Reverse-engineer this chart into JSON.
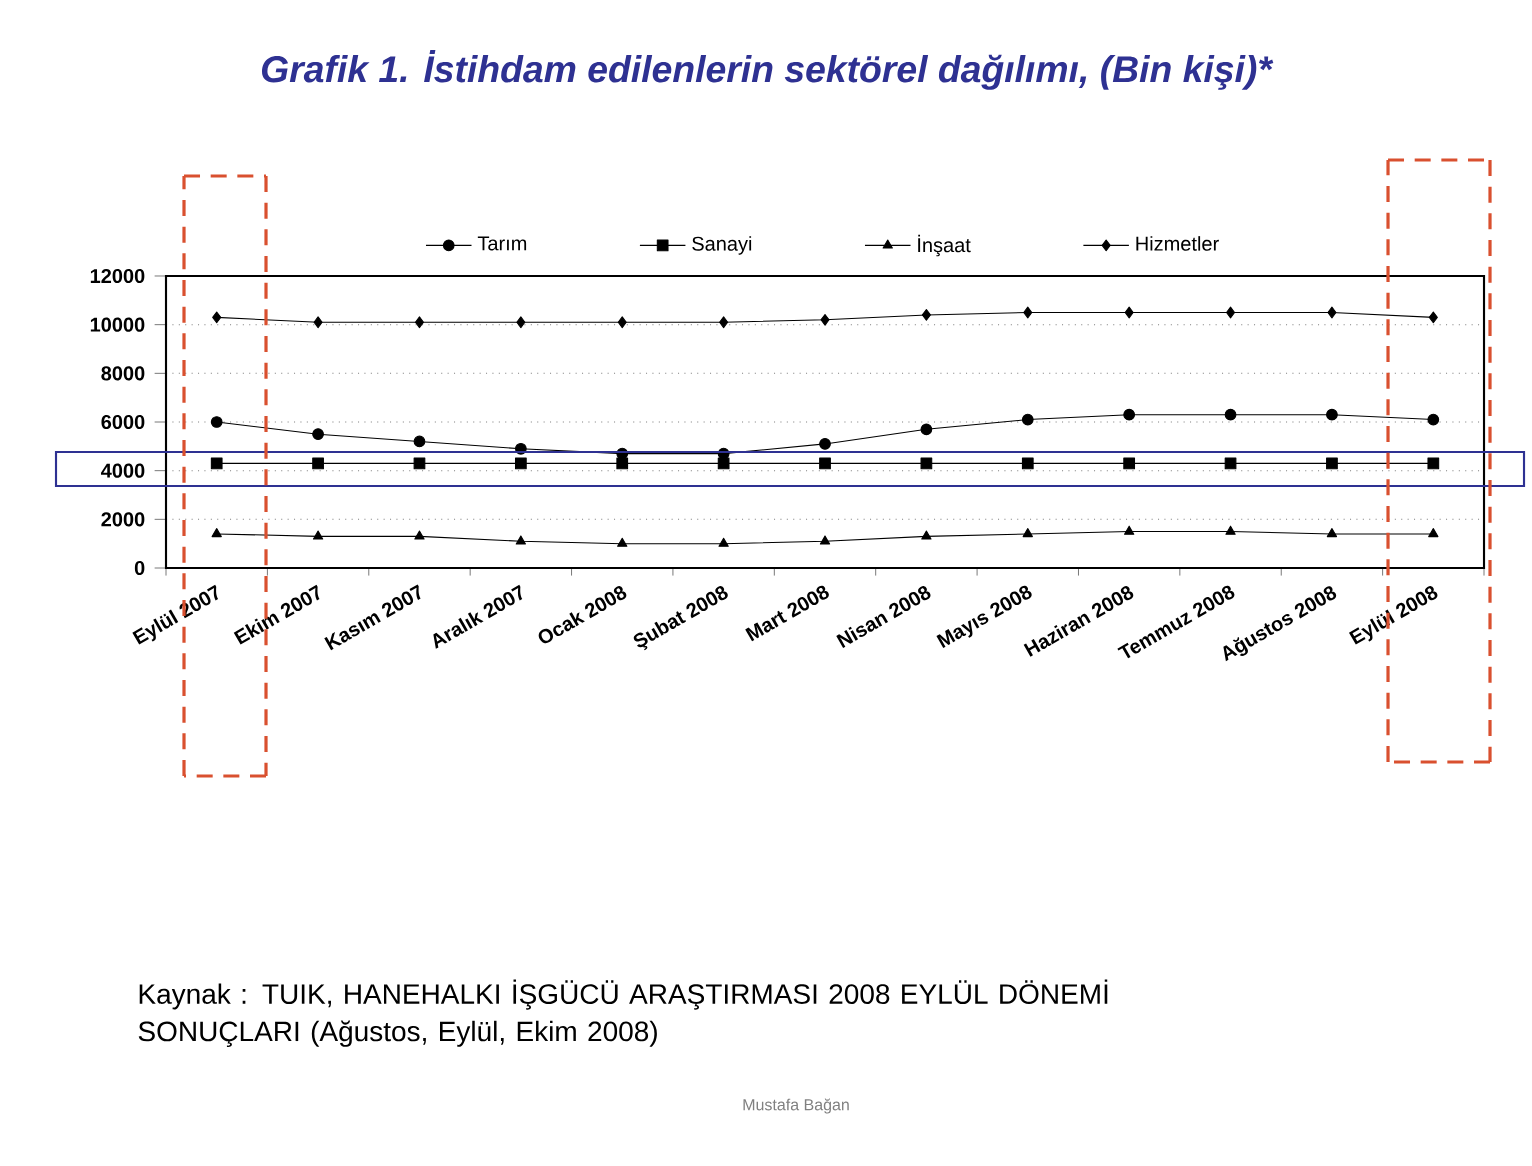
{
  "chart_data": {
    "type": "line",
    "title": "Grafik 1. İstihdam edilenlerin sektörel dağılımı, (Bin kişi)*",
    "categories": [
      "Eylül 2007",
      "Ekim 2007",
      "Kasım 2007",
      "Aralık 2007",
      "Ocak 2008",
      "Şubat 2008",
      "Mart 2008",
      "Nisan 2008",
      "Mayıs 2008",
      "Haziran 2008",
      "Temmuz 2008",
      "Ağustos 2008",
      "Eylül 2008"
    ],
    "series": [
      {
        "name": "Tarım",
        "color": "#000000",
        "marker": "circle",
        "values": [
          6000,
          5500,
          5200,
          4900,
          4700,
          4700,
          5100,
          5700,
          6100,
          6300,
          6300,
          6300,
          6100
        ]
      },
      {
        "name": "Sanayi",
        "color": "#000000",
        "marker": "square",
        "values": [
          4300,
          4300,
          4300,
          4300,
          4300,
          4300,
          4300,
          4300,
          4300,
          4300,
          4300,
          4300,
          4300
        ]
      },
      {
        "name": "İnşaat",
        "color": "#000000",
        "marker": "triangle",
        "values": [
          1400,
          1300,
          1300,
          1100,
          1000,
          1000,
          1100,
          1300,
          1400,
          1500,
          1500,
          1400,
          1400
        ]
      },
      {
        "name": "Hizmetler",
        "color": "#000000",
        "marker": "diamond",
        "values": [
          10300,
          10100,
          10100,
          10100,
          10100,
          10100,
          10200,
          10400,
          10500,
          10500,
          10500,
          10500,
          10300
        ]
      }
    ],
    "ylim": [
      0,
      12000
    ],
    "yticks": [
      0,
      2000,
      4000,
      6000,
      8000,
      10000,
      12000
    ],
    "grid": "y",
    "legend": "top",
    "line_style": "solid",
    "annotations": [
      "Kaynak : TUIK, HANEHALKI İŞGÜCÜ ARAŞTIRMASI 2008 EYLÜL DÖNEMİ SONUÇLARI (Ağustos, Eylül, Ekim 2008)",
      "Mustafa Bağan"
    ]
  }
}
